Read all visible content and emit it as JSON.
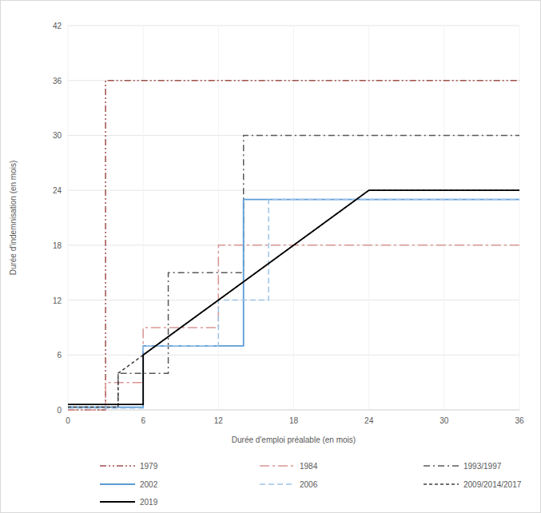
{
  "chart_data": {
    "type": "line",
    "x_label": "Durée d'emploi préalable (en mois)",
    "y_label": "Durée d'indemnisation (en mois)",
    "xlim": [
      0,
      36
    ],
    "xticks": [
      0,
      6,
      12,
      18,
      24,
      30,
      36
    ],
    "ylim": [
      0,
      42
    ],
    "yticks": [
      0,
      6,
      12,
      18,
      24,
      30,
      36,
      42
    ],
    "grid": true,
    "legend": "bottom",
    "series": [
      {
        "name": "1979",
        "color": "#a0504a",
        "line_style": "dash-dot-dot",
        "x": [
          0,
          3,
          3,
          36
        ],
        "values": [
          0,
          0,
          36,
          36
        ]
      },
      {
        "name": "1984",
        "color": "#d99694",
        "line_style": "long-dash-dot",
        "x": [
          0,
          3,
          3,
          6,
          6,
          12,
          12,
          36
        ],
        "values": [
          0,
          0,
          3,
          3,
          9,
          9,
          18,
          18
        ]
      },
      {
        "name": "1993/1997",
        "color": "#595959",
        "line_style": "dash-dot",
        "x": [
          0,
          4,
          4,
          8,
          8,
          14,
          14,
          36
        ],
        "values": [
          0.3,
          0.3,
          4,
          4,
          15,
          15,
          30,
          30
        ]
      },
      {
        "name": "2002",
        "color": "#5b9bd5",
        "line_style": "solid",
        "x": [
          0,
          6,
          6,
          14,
          14,
          36
        ],
        "values": [
          0.3,
          0.3,
          7,
          7,
          23,
          23
        ]
      },
      {
        "name": "2006",
        "color": "#9dc3e6",
        "line_style": "dashed",
        "x": [
          0,
          6,
          6,
          12,
          12,
          16,
          16,
          36
        ],
        "values": [
          0.2,
          0.2,
          7,
          7,
          12,
          12,
          23,
          23
        ]
      },
      {
        "name": "2009/2014/2017",
        "color": "#404040",
        "line_style": "short-dash",
        "x": [
          0,
          4,
          4,
          24,
          36
        ],
        "values": [
          0.3,
          0.3,
          4,
          24,
          24
        ]
      },
      {
        "name": "2019",
        "color": "#000000",
        "line_style": "solid",
        "x": [
          0,
          6,
          6,
          24,
          36
        ],
        "values": [
          0.6,
          0.6,
          6,
          24,
          24
        ]
      }
    ]
  }
}
